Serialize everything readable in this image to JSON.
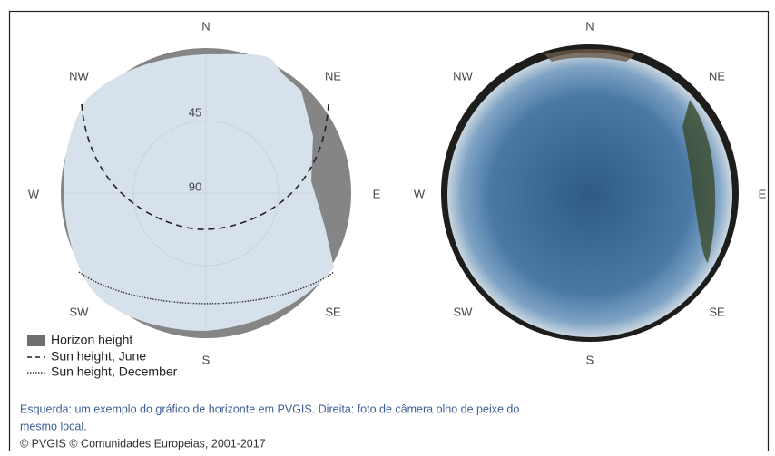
{
  "left": {
    "compass": {
      "N": "N",
      "NE": "NE",
      "E": "E",
      "SE": "SE",
      "S": "S",
      "SW": "SW",
      "W": "W",
      "NW": "NW"
    },
    "radial_labels": [
      45,
      90
    ],
    "legend": [
      "Horizon height",
      "Sun height, June",
      "Sun height, December"
    ]
  },
  "right": {
    "compass": {
      "N": "N",
      "NE": "NE",
      "E": "E",
      "SE": "SE",
      "S": "S",
      "SW": "SW",
      "W": "W",
      "NW": "NW"
    }
  },
  "caption": [
    "Esquerda: um exemplo do gráfico de horizonte em PVGIS. Direita: foto de câmera olho de peixe do",
    "mesmo local."
  ],
  "copyright": "© PVGIS © Comunidades Europeias, 2001-2017"
}
